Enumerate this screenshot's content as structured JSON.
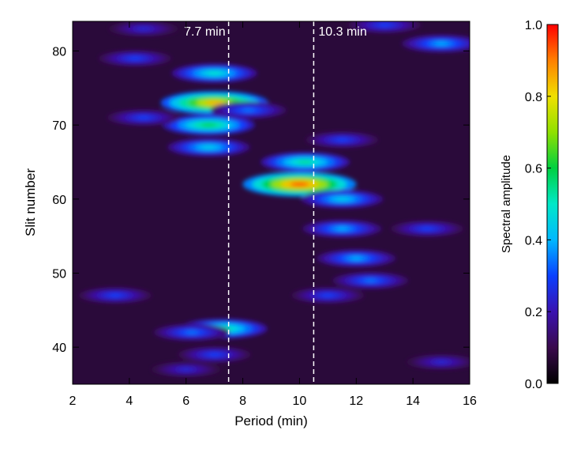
{
  "chart_data": {
    "type": "heatmap",
    "title": "",
    "xlabel": "Period (min)",
    "ylabel": "Slit number",
    "xlim": [
      2,
      16
    ],
    "ylim": [
      35,
      84
    ],
    "xticks": [
      2,
      4,
      6,
      8,
      10,
      12,
      14,
      16
    ],
    "yticks": [
      40,
      50,
      60,
      70,
      80
    ],
    "colorbar": {
      "label": "Spectral amplitude",
      "range": [
        0.0,
        1.0
      ],
      "ticks": [
        "0.0",
        "0.2",
        "0.4",
        "0.6",
        "0.8",
        "1.0"
      ],
      "tick_values": [
        0.0,
        0.2,
        0.4,
        0.6,
        0.8,
        1.0
      ],
      "colormap": "rainbow"
    },
    "reference_lines": [
      {
        "x": 7.5,
        "label": "7.7 min",
        "style": "dashed",
        "color": "#ffffff"
      },
      {
        "x": 10.5,
        "label": "10.3 min",
        "style": "dashed",
        "color": "#ffffff"
      }
    ],
    "blobs": [
      {
        "x": 7.0,
        "y": 73.0,
        "amplitude": 0.85
      },
      {
        "x": 6.8,
        "y": 70.0,
        "amplitude": 0.6
      },
      {
        "x": 7.0,
        "y": 77.0,
        "amplitude": 0.5
      },
      {
        "x": 6.8,
        "y": 67.0,
        "amplitude": 0.45
      },
      {
        "x": 8.2,
        "y": 72.0,
        "amplitude": 0.35
      },
      {
        "x": 10.0,
        "y": 62.0,
        "amplitude": 0.95
      },
      {
        "x": 10.2,
        "y": 65.0,
        "amplitude": 0.55
      },
      {
        "x": 11.5,
        "y": 60.0,
        "amplitude": 0.45
      },
      {
        "x": 11.5,
        "y": 56.0,
        "amplitude": 0.4
      },
      {
        "x": 12.0,
        "y": 52.0,
        "amplitude": 0.4
      },
      {
        "x": 12.5,
        "y": 49.0,
        "amplitude": 0.35
      },
      {
        "x": 11.0,
        "y": 47.0,
        "amplitude": 0.3
      },
      {
        "x": 7.3,
        "y": 42.5,
        "amplitude": 0.55
      },
      {
        "x": 6.2,
        "y": 42.0,
        "amplitude": 0.35
      },
      {
        "x": 7.0,
        "y": 39.0,
        "amplitude": 0.3
      },
      {
        "x": 6.0,
        "y": 37.0,
        "amplitude": 0.25
      },
      {
        "x": 15.0,
        "y": 81.0,
        "amplitude": 0.4
      },
      {
        "x": 11.5,
        "y": 68.0,
        "amplitude": 0.3
      },
      {
        "x": 14.5,
        "y": 56.0,
        "amplitude": 0.3
      },
      {
        "x": 15.0,
        "y": 38.0,
        "amplitude": 0.25
      },
      {
        "x": 3.5,
        "y": 47.0,
        "amplitude": 0.3
      },
      {
        "x": 4.5,
        "y": 71.0,
        "amplitude": 0.3
      },
      {
        "x": 4.2,
        "y": 79.0,
        "amplitude": 0.3
      },
      {
        "x": 4.5,
        "y": 83.0,
        "amplitude": 0.25
      },
      {
        "x": 13.0,
        "y": 83.5,
        "amplitude": 0.3
      }
    ],
    "grid": false
  }
}
